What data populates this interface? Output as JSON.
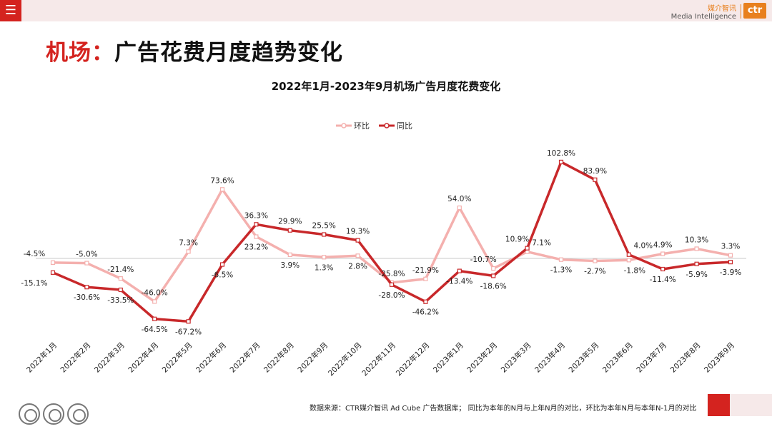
{
  "header": {
    "menu_icon": "hamburger-menu-icon",
    "brand_cn": "媒介智讯",
    "brand_en": "Media Intelligence",
    "brand_logo": "ctr"
  },
  "title": {
    "prefix": "机场：",
    "main": "广告花费月度趋势变化"
  },
  "footer": {
    "note": "数据来源：CTR媒介智讯 Ad Cube 广告数据库； 同比为本年的N月与上年N月的对比，环比为本年N月与本年N-1月的对比"
  },
  "colors": {
    "accent": "#d4231f",
    "mom_line": "#f4b0ae",
    "yoy_line": "#c8282a"
  },
  "chart_data": {
    "type": "line",
    "title": "2022年1月-2023年9月机场广告月度花费变化",
    "xlabel": "",
    "ylabel": "",
    "ylim": [
      -75,
      110
    ],
    "legend_position": "top-center",
    "categories": [
      "2022年1月",
      "2022年2月",
      "2022年3月",
      "2022年4月",
      "2022年5月",
      "2022年6月",
      "2022年7月",
      "2022年8月",
      "2022年9月",
      "2022年10月",
      "2022年11月",
      "2022年12月",
      "2023年1月",
      "2023年2月",
      "2023年3月",
      "2023年4月",
      "2023年5月",
      "2023年6月",
      "2023年7月",
      "2023年8月",
      "2023年9月"
    ],
    "series": [
      {
        "name": "环比",
        "values": [
          -4.5,
          -5.0,
          -21.4,
          -46.0,
          7.3,
          73.6,
          23.2,
          3.9,
          1.3,
          2.8,
          -25.8,
          -21.9,
          54.0,
          -10.7,
          7.1,
          -1.3,
          -2.7,
          -1.8,
          4.9,
          10.3,
          3.3
        ],
        "labels": [
          "-4.5%",
          "-5.0%",
          "-21.4%",
          "-46.0%",
          "7.3%",
          "73.6%",
          "23.2%",
          "3.9%",
          "1.3%",
          "2.8%",
          "-25.8%",
          "-21.9%",
          "54.0%",
          "-10.7%",
          "7.1%",
          "-1.3%",
          "-2.7%",
          "-1.8%",
          "4.9%",
          "10.3%",
          "3.3%"
        ]
      },
      {
        "name": "同比",
        "values": [
          -15.1,
          -30.6,
          -33.5,
          -64.5,
          -67.2,
          -6.5,
          36.3,
          29.9,
          25.5,
          19.3,
          -28.0,
          -46.2,
          -13.4,
          -18.6,
          10.9,
          102.8,
          83.9,
          4.0,
          -11.4,
          -5.9,
          -3.9
        ],
        "labels": [
          "-15.1%",
          "-30.6%",
          "-33.5%",
          "-64.5%",
          "-67.2%",
          "-6.5%",
          "36.3%",
          "29.9%",
          "25.5%",
          "19.3%",
          "-28.0%",
          "-46.2%",
          "-13.4%",
          "-18.6%",
          "10.9%",
          "102.8%",
          "83.9%",
          "4.0%",
          "-11.4%",
          "-5.9%",
          "-3.9%"
        ]
      }
    ]
  }
}
